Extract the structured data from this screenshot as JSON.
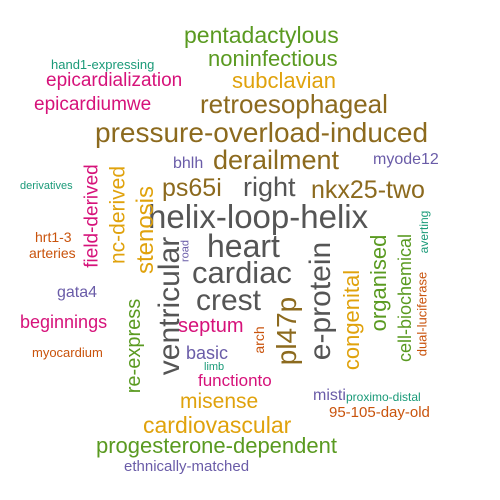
{
  "palette": {
    "brown": "#8C6A1E",
    "gray": "#555555",
    "green": "#5A9A21",
    "orange": "#C9530C",
    "gold": "#E0A20C",
    "magenta": "#D6127A",
    "purple": "#6A5CA8",
    "teal": "#1A9A78"
  },
  "words": [
    {
      "text": "pentadactylous",
      "color": "green"
    },
    {
      "text": "noninfectious",
      "color": "green"
    },
    {
      "text": "hand1-expressing",
      "color": "teal"
    },
    {
      "text": "epicardialization",
      "color": "magenta"
    },
    {
      "text": "subclavian",
      "color": "gold"
    },
    {
      "text": "epicardiumwe",
      "color": "magenta"
    },
    {
      "text": "retroesophageal",
      "color": "brown"
    },
    {
      "text": "pressure-overload-induced",
      "color": "brown"
    },
    {
      "text": "bhlh",
      "color": "purple"
    },
    {
      "text": "derailment",
      "color": "brown"
    },
    {
      "text": "myode12",
      "color": "purple"
    },
    {
      "text": "derivatives",
      "color": "teal"
    },
    {
      "text": "ps65i",
      "color": "brown"
    },
    {
      "text": "right",
      "color": "gray"
    },
    {
      "text": "nkx25-two",
      "color": "brown"
    },
    {
      "text": "helix-loop-helix",
      "color": "gray"
    },
    {
      "text": "hrt1-3",
      "color": "orange"
    },
    {
      "text": "arteries",
      "color": "orange"
    },
    {
      "text": "heart",
      "color": "gray"
    },
    {
      "text": "cardiac",
      "color": "gray"
    },
    {
      "text": "crest",
      "color": "gray"
    },
    {
      "text": "gata4",
      "color": "purple"
    },
    {
      "text": "beginnings",
      "color": "magenta"
    },
    {
      "text": "septum",
      "color": "magenta"
    },
    {
      "text": "myocardium",
      "color": "orange"
    },
    {
      "text": "basic",
      "color": "purple"
    },
    {
      "text": "limb",
      "color": "teal"
    },
    {
      "text": "functionto",
      "color": "magenta"
    },
    {
      "text": "misense",
      "color": "gold"
    },
    {
      "text": "misti",
      "color": "purple"
    },
    {
      "text": "proximo-distal",
      "color": "teal"
    },
    {
      "text": "cardiovascular",
      "color": "gold"
    },
    {
      "text": "95-105-day-old",
      "color": "orange"
    },
    {
      "text": "progesterone-dependent",
      "color": "green"
    },
    {
      "text": "ethnically-matched",
      "color": "purple"
    },
    {
      "text": "field-derived",
      "color": "magenta"
    },
    {
      "text": "nc-derived",
      "color": "gold"
    },
    {
      "text": "stenosis",
      "color": "gold"
    },
    {
      "text": "road",
      "color": "purple"
    },
    {
      "text": "ventricular",
      "color": "gray"
    },
    {
      "text": "re-express",
      "color": "green"
    },
    {
      "text": "arch",
      "color": "orange"
    },
    {
      "text": "pl47p",
      "color": "brown"
    },
    {
      "text": "e-protein",
      "color": "gray"
    },
    {
      "text": "congenital",
      "color": "gold"
    },
    {
      "text": "organised",
      "color": "green"
    },
    {
      "text": "cell-biochemical",
      "color": "green"
    },
    {
      "text": "dual-luciferase",
      "color": "orange"
    },
    {
      "text": "averting",
      "color": "teal"
    }
  ]
}
